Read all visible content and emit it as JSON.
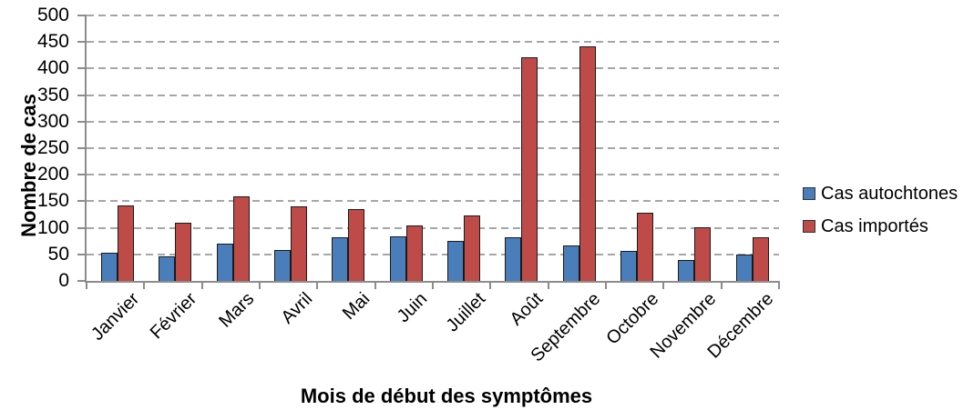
{
  "chart_data": {
    "type": "bar",
    "title": "",
    "xlabel": "Mois de début des symptômes",
    "ylabel": "Nombre de cas",
    "categories": [
      "Janvier",
      "Février",
      "Mars",
      "Avril",
      "Mai",
      "Juin",
      "Juillet",
      "Août",
      "Septembre",
      "Octobre",
      "Novembre",
      "Décembre"
    ],
    "series": [
      {
        "name": "Cas autochtones",
        "color": "#4A7EBB",
        "values": [
          52,
          45,
          68,
          57,
          80,
          82,
          73,
          80,
          65,
          55,
          38,
          48
        ]
      },
      {
        "name": "Cas importés",
        "color": "#BE4B48",
        "values": [
          140,
          108,
          158,
          138,
          133,
          103,
          121,
          419,
          440,
          126,
          100,
          81
        ]
      }
    ],
    "ylim": [
      0,
      500
    ],
    "yticks": [
      0,
      50,
      100,
      150,
      200,
      250,
      300,
      350,
      400,
      450,
      500
    ],
    "grid": "horizontal-dashed",
    "gridline_color": "#A6A6A6",
    "axis_color": "#8C8C8C",
    "legend_position": "right"
  }
}
